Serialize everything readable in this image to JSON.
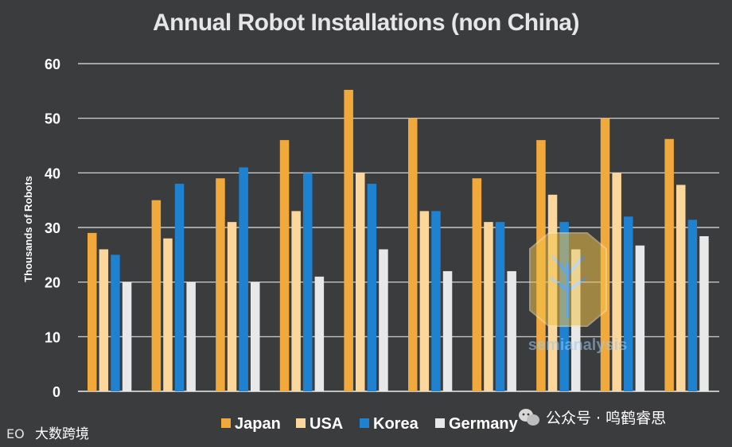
{
  "chart_data": {
    "type": "bar",
    "title": "Annual Robot Installations (non China)",
    "ylabel": "Thousands of Robots",
    "xlabel": "",
    "ylim": [
      0,
      60
    ],
    "yticks": [
      0,
      10,
      20,
      30,
      40,
      50,
      60
    ],
    "grid": true,
    "legend_position": "bottom",
    "categories": [
      "",
      "",
      "",
      "",
      "",
      "",
      "",
      "",
      "",
      ""
    ],
    "series": [
      {
        "name": "Japan",
        "color": "#f2a93b",
        "values": [
          29,
          35,
          39,
          46,
          55.2,
          50,
          39,
          46,
          50,
          46.2
        ]
      },
      {
        "name": "USA",
        "color": "#fcd79b",
        "values": [
          26,
          28,
          31,
          33,
          40,
          33,
          31,
          36,
          40,
          37.8
        ]
      },
      {
        "name": "Korea",
        "color": "#1f82d0",
        "values": [
          25,
          38,
          41,
          40,
          38,
          33,
          31,
          31,
          32,
          31.4
        ]
      },
      {
        "name": "Germany",
        "color": "#e8e8e8",
        "values": [
          20,
          20,
          20,
          21,
          26,
          22,
          22,
          26,
          26.7,
          28.4
        ]
      }
    ]
  },
  "watermarks": {
    "bottom_left": "大数跨境",
    "bottom_left_logo": "EO",
    "wechat_icon": "wechat-icon",
    "bottom_right": "公众号 · 鸣鹤睿思",
    "center_text": "semianalysis"
  }
}
